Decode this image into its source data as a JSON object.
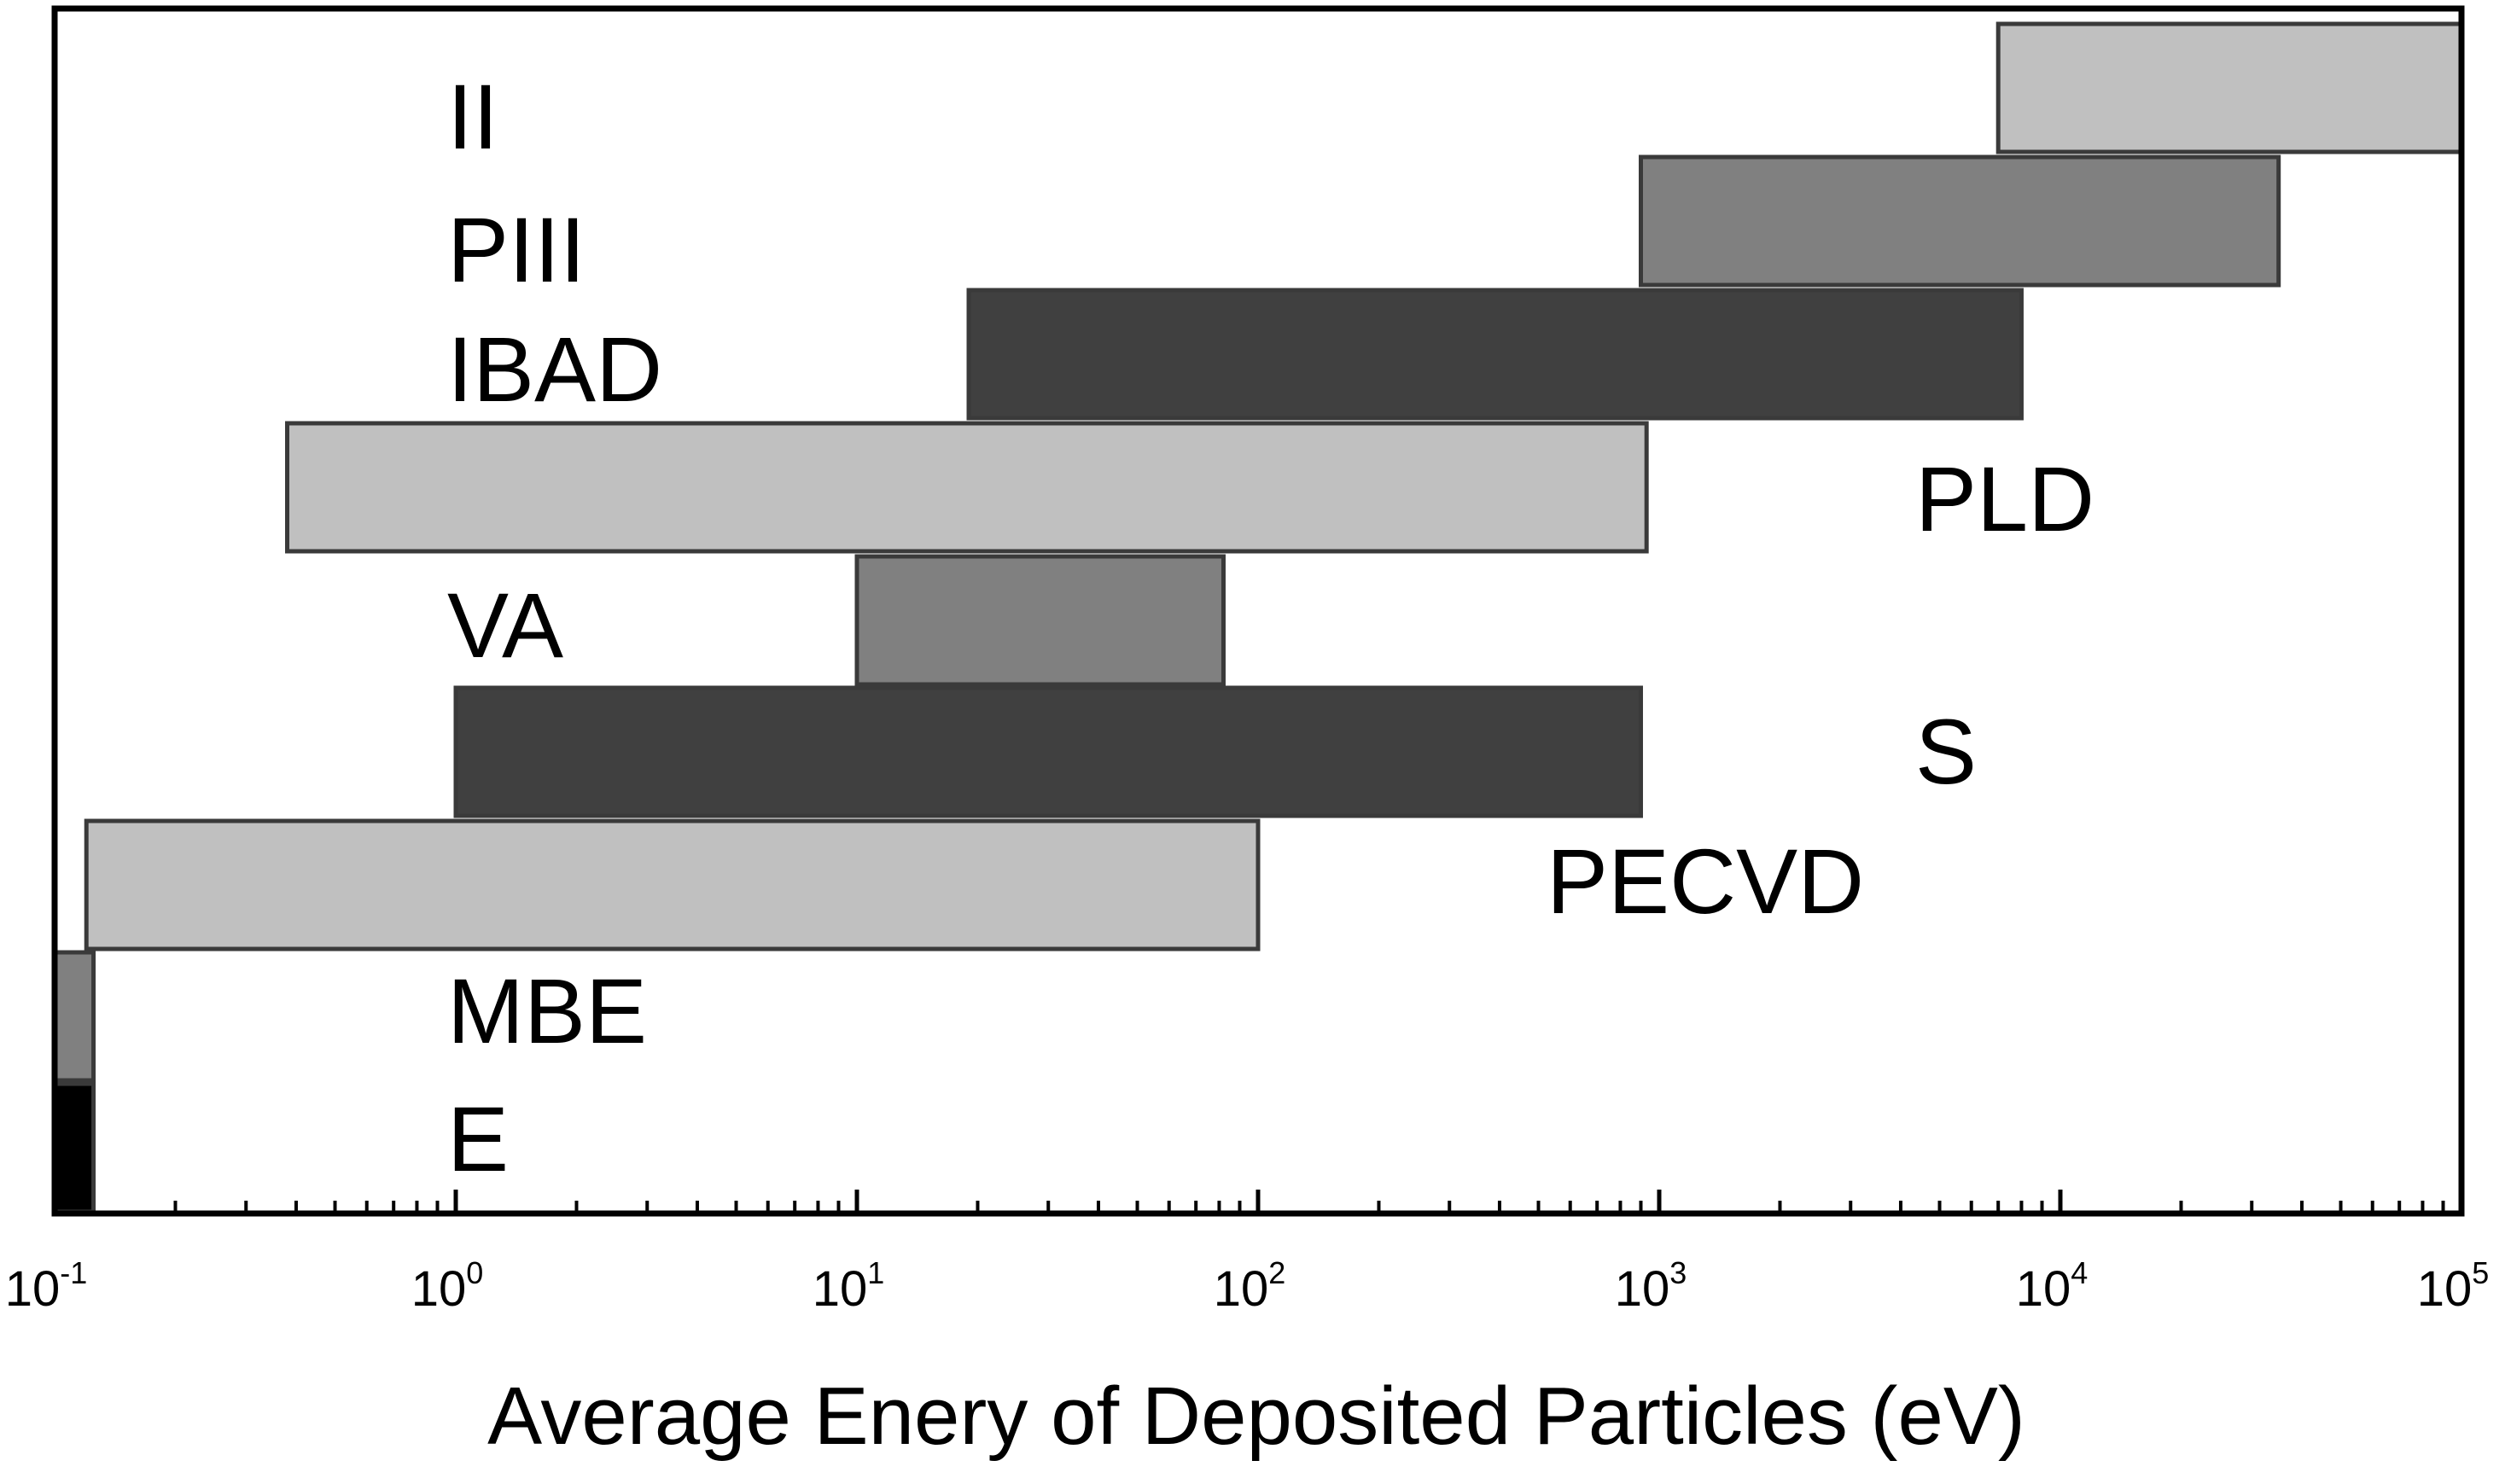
{
  "chart_data": {
    "type": "bar",
    "orientation": "horizontal-range",
    "title": "",
    "xlabel": "Average Enery of Deposited Particles (eV)",
    "ylabel": "",
    "xscale": "log",
    "xlim": [
      0.1,
      100000
    ],
    "grid": false,
    "legend": "none",
    "x_ticks": [
      {
        "base": "10",
        "exp": "-1",
        "value": 0.1
      },
      {
        "base": "10",
        "exp": "0",
        "value": 1
      },
      {
        "base": "10",
        "exp": "1",
        "value": 10
      },
      {
        "base": "10",
        "exp": "2",
        "value": 100
      },
      {
        "base": "10",
        "exp": "3",
        "value": 1000
      },
      {
        "base": "10",
        "exp": "4",
        "value": 10000
      },
      {
        "base": "10",
        "exp": "5",
        "value": 100000
      }
    ],
    "bars": [
      {
        "label": "II",
        "min": 7000,
        "max": 100000,
        "color": "#c0c0c0"
      },
      {
        "label": "PIII",
        "min": 900,
        "max": 35000,
        "color": "#808080"
      },
      {
        "label": "IBAD",
        "min": 19,
        "max": 8000,
        "color": "#404040"
      },
      {
        "label": "PLD",
        "min": 0.38,
        "max": 930,
        "color": "#c0c0c0"
      },
      {
        "label": "VA",
        "min": 10,
        "max": 82,
        "color": "#808080"
      },
      {
        "label": "S",
        "min": 1,
        "max": 900,
        "color": "#404040"
      },
      {
        "label": "PECVD",
        "min": 0.12,
        "max": 100,
        "color": "#c0c0c0"
      },
      {
        "label": "MBE",
        "min": 0.1,
        "max": 0.125,
        "color": "#808080"
      },
      {
        "label": "E",
        "min": 0.1,
        "max": 0.125,
        "color": "#000000"
      }
    ]
  }
}
